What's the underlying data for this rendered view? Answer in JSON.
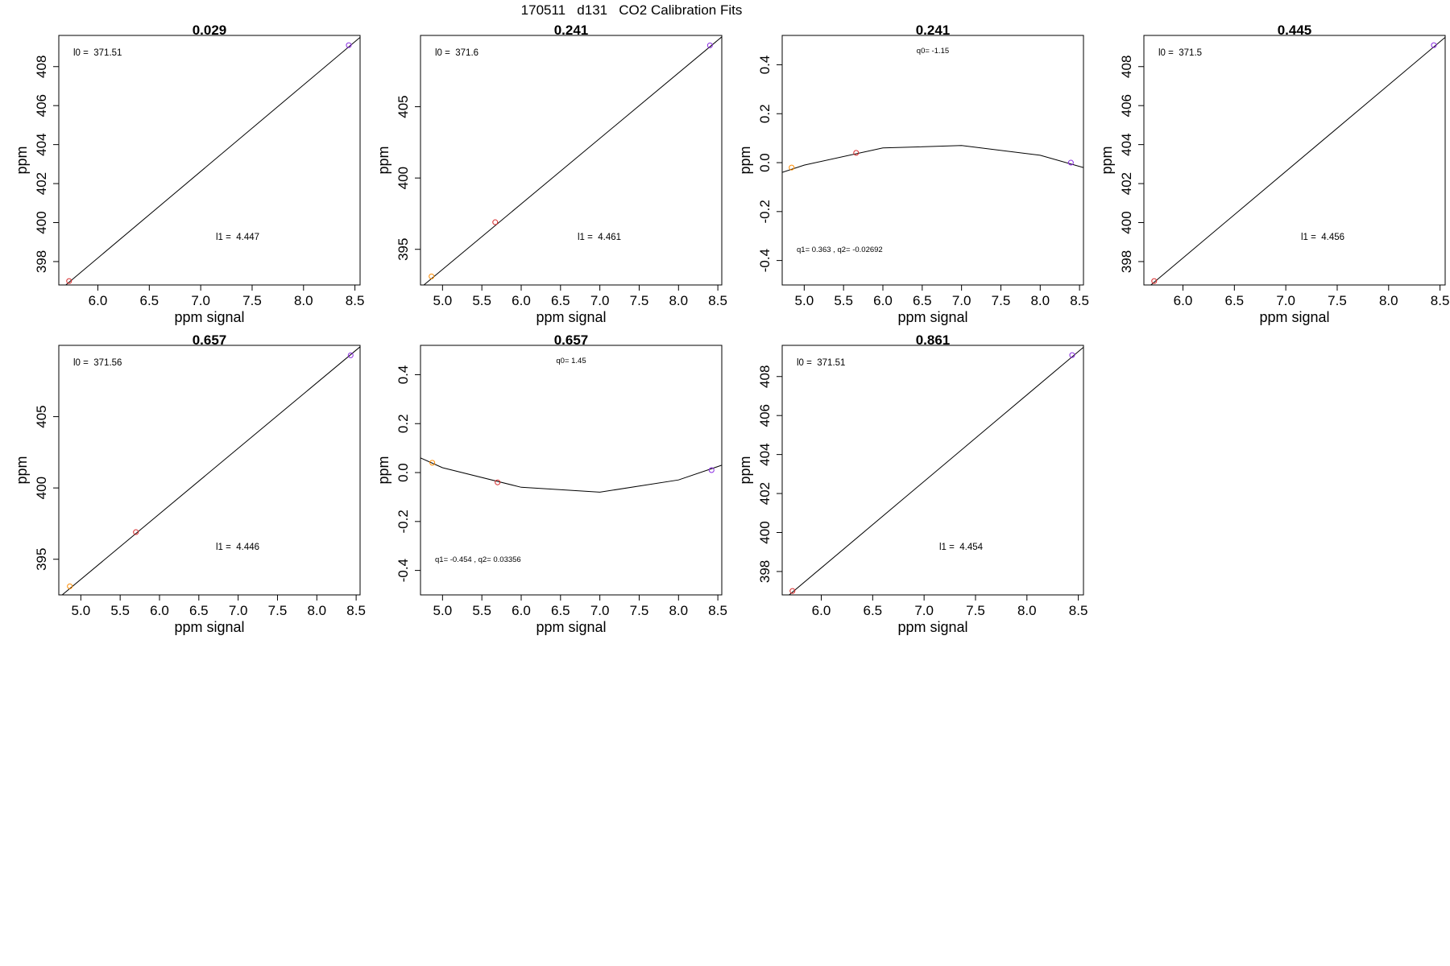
{
  "figure_title": "170511   d131   CO2 Calibration Fits",
  "chart_data": [
    {
      "type": "line",
      "fit": "linear",
      "title": "0.029",
      "xlabel": "ppm signal",
      "ylabel": "ppm",
      "xlim": [
        5.62,
        8.55
      ],
      "ylim": [
        396.8,
        409.6
      ],
      "xticks": [
        "6.0",
        "6.5",
        "7.0",
        "7.5",
        "8.0",
        "8.5"
      ],
      "yticks": [
        "398",
        "400",
        "402",
        "404",
        "406",
        "408"
      ],
      "annotations": [
        "l0 =  371.51",
        "l1 =  4.447"
      ],
      "line": {
        "x": [
          5.62,
          8.55
        ],
        "y": [
          396.5,
          409.5
        ]
      },
      "points": [
        {
          "x": 5.72,
          "y": 397.0,
          "color": "#d62728"
        },
        {
          "x": 8.44,
          "y": 409.1,
          "color": "#8a2be2"
        }
      ]
    },
    {
      "type": "line",
      "fit": "linear",
      "title": "0.241",
      "xlabel": "ppm signal",
      "ylabel": "ppm",
      "xlim": [
        4.72,
        8.55
      ],
      "ylim": [
        392.5,
        410.0
      ],
      "xticks": [
        "5.0",
        "5.5",
        "6.0",
        "6.5",
        "7.0",
        "7.5",
        "8.0",
        "8.5"
      ],
      "yticks": [
        "395",
        "400",
        "405"
      ],
      "annotations": [
        "l0 =  371.6",
        "l1 =  4.461"
      ],
      "line": {
        "x": [
          4.72,
          8.55
        ],
        "y": [
          392.3,
          409.9
        ]
      },
      "points": [
        {
          "x": 4.86,
          "y": 393.1,
          "color": "#ff8c00"
        },
        {
          "x": 5.67,
          "y": 396.9,
          "color": "#d62728"
        },
        {
          "x": 8.4,
          "y": 409.3,
          "color": "#8a2be2"
        }
      ]
    },
    {
      "type": "line",
      "fit": "quadratic residual",
      "title": "0.241",
      "xlabel": "ppm signal",
      "ylabel": "ppm",
      "xlim": [
        4.72,
        8.55
      ],
      "ylim": [
        -0.5,
        0.52
      ],
      "xticks": [
        "5.0",
        "5.5",
        "6.0",
        "6.5",
        "7.0",
        "7.5",
        "8.0",
        "8.5"
      ],
      "yticks": [
        "-0.4",
        "-0.2",
        "0.0",
        "0.2",
        "0.4"
      ],
      "annotations": [
        "q0= -1.15",
        "q1= 0.363 , q2= -0.02692"
      ],
      "line": {
        "x": [
          4.72,
          5.0,
          6.0,
          7.0,
          8.0,
          8.55
        ],
        "y": [
          -0.04,
          -0.01,
          0.06,
          0.07,
          0.03,
          -0.02
        ]
      },
      "points": [
        {
          "x": 4.84,
          "y": -0.02,
          "color": "#ff8c00"
        },
        {
          "x": 5.66,
          "y": 0.04,
          "color": "#d62728"
        },
        {
          "x": 8.39,
          "y": 0.0,
          "color": "#8a2be2"
        }
      ]
    },
    {
      "type": "line",
      "fit": "linear",
      "title": "0.445",
      "xlabel": "ppm signal",
      "ylabel": "ppm",
      "xlim": [
        5.62,
        8.55
      ],
      "ylim": [
        396.8,
        409.6
      ],
      "xticks": [
        "6.0",
        "6.5",
        "7.0",
        "7.5",
        "8.0",
        "8.5"
      ],
      "yticks": [
        "398",
        "400",
        "402",
        "404",
        "406",
        "408"
      ],
      "annotations": [
        "l0 =  371.5",
        "l1 =  4.456"
      ],
      "line": {
        "x": [
          5.62,
          8.55
        ],
        "y": [
          396.5,
          409.5
        ]
      },
      "points": [
        {
          "x": 5.72,
          "y": 397.0,
          "color": "#d62728"
        },
        {
          "x": 8.44,
          "y": 409.1,
          "color": "#8a2be2"
        }
      ]
    },
    {
      "type": "line",
      "fit": "linear",
      "title": "0.657",
      "xlabel": "ppm signal",
      "ylabel": "ppm",
      "xlim": [
        4.72,
        8.55
      ],
      "ylim": [
        392.5,
        410.0
      ],
      "xticks": [
        "5.0",
        "5.5",
        "6.0",
        "6.5",
        "7.0",
        "7.5",
        "8.0",
        "8.5"
      ],
      "yticks": [
        "395",
        "400",
        "405"
      ],
      "annotations": [
        "l0 =  371.56",
        "l1 =  4.446"
      ],
      "line": {
        "x": [
          4.72,
          8.55
        ],
        "y": [
          392.3,
          409.9
        ]
      },
      "points": [
        {
          "x": 4.86,
          "y": 393.1,
          "color": "#ff8c00"
        },
        {
          "x": 5.7,
          "y": 396.9,
          "color": "#d62728"
        },
        {
          "x": 8.43,
          "y": 409.3,
          "color": "#8a2be2"
        }
      ]
    },
    {
      "type": "line",
      "fit": "quadratic residual",
      "title": "0.657",
      "xlabel": "ppm signal",
      "ylabel": "ppm",
      "xlim": [
        4.72,
        8.55
      ],
      "ylim": [
        -0.5,
        0.52
      ],
      "xticks": [
        "5.0",
        "5.5",
        "6.0",
        "6.5",
        "7.0",
        "7.5",
        "8.0",
        "8.5"
      ],
      "yticks": [
        "-0.4",
        "-0.2",
        "0.0",
        "0.2",
        "0.4"
      ],
      "annotations": [
        "q0= 1.45",
        "q1= -0.454 , q2= 0.03356"
      ],
      "line": {
        "x": [
          4.72,
          5.0,
          6.0,
          7.0,
          8.0,
          8.55
        ],
        "y": [
          0.06,
          0.02,
          -0.06,
          -0.08,
          -0.03,
          0.03
        ]
      },
      "points": [
        {
          "x": 4.87,
          "y": 0.04,
          "color": "#ff8c00"
        },
        {
          "x": 5.7,
          "y": -0.04,
          "color": "#d62728"
        },
        {
          "x": 8.42,
          "y": 0.01,
          "color": "#8a2be2"
        }
      ]
    },
    {
      "type": "line",
      "fit": "linear",
      "title": "0.861",
      "xlabel": "ppm signal",
      "ylabel": "ppm",
      "xlim": [
        5.62,
        8.55
      ],
      "ylim": [
        396.8,
        409.6
      ],
      "xticks": [
        "6.0",
        "6.5",
        "7.0",
        "7.5",
        "8.0",
        "8.5"
      ],
      "yticks": [
        "398",
        "400",
        "402",
        "404",
        "406",
        "408"
      ],
      "annotations": [
        "l0 =  371.51",
        "l1 =  4.454"
      ],
      "line": {
        "x": [
          5.62,
          8.55
        ],
        "y": [
          396.5,
          409.5
        ]
      },
      "points": [
        {
          "x": 5.72,
          "y": 397.0,
          "color": "#d62728"
        },
        {
          "x": 8.44,
          "y": 409.1,
          "color": "#8a2be2"
        }
      ]
    }
  ]
}
